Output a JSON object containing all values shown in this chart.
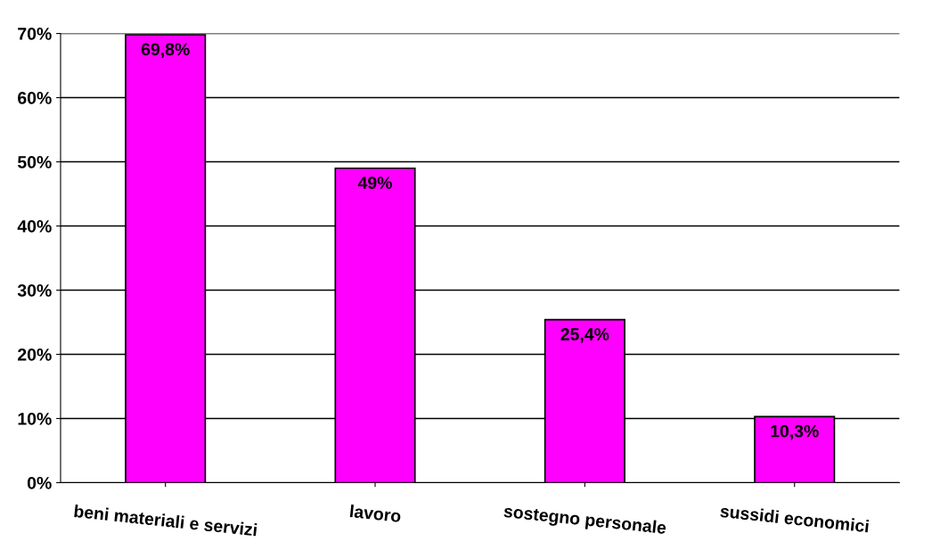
{
  "chart_data": {
    "type": "bar",
    "categories": [
      "beni materiali e servizi",
      "lavoro",
      "sostegno personale",
      "sussidi economici"
    ],
    "values": [
      69.8,
      49,
      25.4,
      10.3
    ],
    "value_labels": [
      "69,8%",
      "49%",
      "25,4%",
      "10,3%"
    ],
    "color": "#ff00ff",
    "ylim": [
      0,
      70
    ],
    "yticks": [
      {
        "value": 0,
        "label": "0%"
      },
      {
        "value": 10,
        "label": "10%"
      },
      {
        "value": 20,
        "label": "20%"
      },
      {
        "value": 30,
        "label": "30%"
      },
      {
        "value": 40,
        "label": "40%"
      },
      {
        "value": 50,
        "label": "50%"
      },
      {
        "value": 60,
        "label": "60%"
      },
      {
        "value": 70,
        "label": "70%"
      }
    ],
    "grid": "y"
  }
}
